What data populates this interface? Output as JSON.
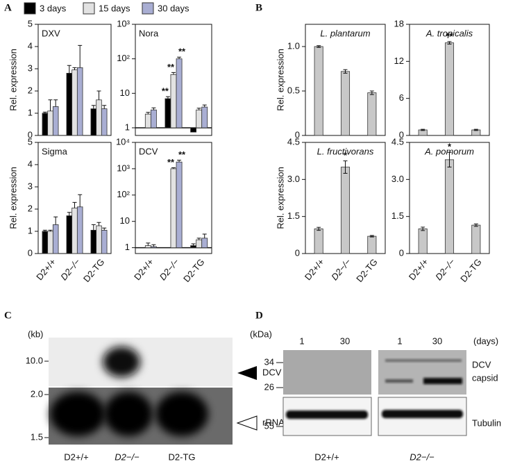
{
  "panel_labels": [
    "A",
    "B",
    "C",
    "D"
  ],
  "chart_data": [
    {
      "type": "bar",
      "title": "DXV",
      "ylabel": "Rel. expression",
      "categories": [
        null,
        null,
        null
      ],
      "ylim": [
        0,
        5
      ],
      "yticks": [
        0,
        1,
        2,
        3,
        4,
        5
      ],
      "series": [
        {
          "name": "3 days",
          "color": "#000000",
          "values": [
            1,
            2.8,
            1.2
          ],
          "errors": [
            0.05,
            0.35,
            0.15
          ]
        },
        {
          "name": "15 days",
          "color": "#e2e2e2",
          "values": [
            1.1,
            2.95,
            1.6
          ],
          "errors": [
            0.5,
            0.1,
            0.4
          ]
        },
        {
          "name": "30 days",
          "color": "#a9aed3",
          "values": [
            1.3,
            3.05,
            1.2
          ],
          "errors": [
            0.3,
            1.0,
            0.15
          ]
        }
      ]
    },
    {
      "type": "bar",
      "title": "Nora",
      "log": true,
      "categories": [
        null,
        null,
        null
      ],
      "ylim": [
        0.6,
        1000
      ],
      "yticks": [
        1,
        10,
        {
          "value": 100,
          "label": "10²"
        },
        {
          "value": 1000,
          "label": "10³"
        }
      ],
      "series": [
        {
          "color": "#000000",
          "values": [
            1,
            7,
            0.75
          ],
          "errors": [
            null,
            1,
            null
          ],
          "significance": [
            null,
            "**",
            null
          ]
        },
        {
          "color": "#e2e2e2",
          "values": [
            2.5,
            35,
            3.3
          ],
          "errors": [
            0.3,
            5,
            0.4
          ],
          "significance": [
            null,
            "**",
            null
          ]
        },
        {
          "color": "#a9aed3",
          "values": [
            3.3,
            100,
            4
          ],
          "errors": [
            0.5,
            12,
            0.6
          ],
          "significance": [
            null,
            "**",
            null
          ]
        }
      ]
    },
    {
      "type": "bar",
      "title": "Sigma",
      "ylabel": "Rel. expression",
      "categories": [
        "D2+/+",
        "D2−/−",
        "D2-TG"
      ],
      "ylim": [
        0,
        5
      ],
      "yticks": [
        0,
        1,
        2,
        3,
        4,
        5
      ],
      "series": [
        {
          "color": "#000000",
          "values": [
            1,
            1.7,
            1.05
          ],
          "errors": [
            0.05,
            0.15,
            0.25
          ]
        },
        {
          "color": "#e2e2e2",
          "values": [
            1,
            2.05,
            1.25
          ],
          "errors": [
            0.05,
            0.25,
            0.15
          ]
        },
        {
          "color": "#a9aed3",
          "values": [
            1.3,
            2.1,
            1.05
          ],
          "errors": [
            0.35,
            0.55,
            0.1
          ]
        }
      ]
    },
    {
      "type": "bar",
      "title": "DCV",
      "log": true,
      "categories": [
        "D2+/+",
        "D2−/−",
        "D2-TG"
      ],
      "ylim": [
        0.6,
        10000
      ],
      "yticks": [
        1,
        10,
        {
          "value": 100,
          "label": "10²"
        },
        {
          "value": 1000,
          "label": "10³"
        },
        {
          "value": 10000,
          "label": "10⁴"
        }
      ],
      "series": [
        {
          "color": "#000000",
          "values": [
            1,
            1,
            1.2
          ],
          "errors": [
            null,
            null,
            0.2
          ]
        },
        {
          "color": "#e2e2e2",
          "values": [
            1.2,
            1000,
            2
          ],
          "errors": [
            0.3,
            100,
            0.3
          ],
          "significance": [
            null,
            "**",
            null
          ]
        },
        {
          "color": "#a9aed3",
          "values": [
            1.1,
            1800,
            2.3
          ],
          "errors": [
            0.2,
            300,
            1.0
          ],
          "significance": [
            null,
            "**",
            null
          ]
        }
      ]
    },
    {
      "type": "bar",
      "title": "L. plantarum",
      "ylabel": "Rel. expression",
      "categories": [
        null,
        null,
        null
      ],
      "ylim": [
        0,
        1.25
      ],
      "yticks": [
        0,
        0.5,
        {
          "value": 1,
          "label": "1.0"
        }
      ],
      "series": [
        {
          "color": "#c8c8c8",
          "values": [
            1,
            0.72,
            0.48
          ],
          "errors": [
            0.01,
            0.02,
            0.02
          ]
        }
      ]
    },
    {
      "type": "bar",
      "title": "A. tropicalis",
      "categories": [
        null,
        null,
        null
      ],
      "ylim": [
        0,
        18
      ],
      "yticks": [
        0,
        6,
        12,
        18
      ],
      "series": [
        {
          "color": "#c8c8c8",
          "values": [
            0.9,
            15,
            0.9
          ],
          "errors": [
            0.1,
            0.2,
            0.1
          ],
          "significance": [
            null,
            "**",
            null
          ]
        }
      ]
    },
    {
      "type": "bar",
      "title": "L. fructivorans",
      "ylabel": "Rel. expression",
      "categories": [
        "D2+/+",
        "D2−/−",
        "D2-TG"
      ],
      "ylim": [
        0,
        4.5
      ],
      "yticks": [
        0,
        1.5,
        {
          "value": 3,
          "label": "3.0"
        },
        4.5
      ],
      "series": [
        {
          "color": "#c8c8c8",
          "values": [
            1,
            3.5,
            0.7
          ],
          "errors": [
            0.06,
            0.25,
            0.03
          ],
          "significance": [
            null,
            "*",
            null
          ]
        }
      ]
    },
    {
      "type": "bar",
      "title": "A. pomorum",
      "categories": [
        "D2+/+",
        "D2−/−",
        "D2-TG"
      ],
      "ylim": [
        0,
        4.5
      ],
      "yticks": [
        0,
        1.5,
        {
          "value": 3,
          "label": "3.0"
        },
        4.5
      ],
      "series": [
        {
          "color": "#c8c8c8",
          "values": [
            1,
            3.8,
            1.15
          ],
          "errors": [
            0.07,
            0.3,
            0.05
          ],
          "significance": [
            null,
            "*",
            null
          ]
        }
      ]
    }
  ],
  "northern_blot": {
    "size_unit": "(kb)",
    "markers": [
      "10.0",
      "2.0",
      "1.5"
    ],
    "bands": [
      "DCV",
      "rRNA"
    ],
    "lanes": [
      "D2+/+",
      "D2−/−",
      "D2-TG"
    ]
  },
  "western_blot": {
    "size_unit": "(kDa)",
    "time_unit": "(days)",
    "timepoints": [
      "1",
      "30",
      "1",
      "30"
    ],
    "markers": [
      "34",
      "26",
      "55"
    ],
    "bands": [
      {
        "lines": [
          "DCV",
          "capsid"
        ]
      },
      {
        "lines": [
          "Tubulin"
        ]
      }
    ],
    "genotypes": [
      "D2+/+",
      "D2−/−"
    ]
  }
}
